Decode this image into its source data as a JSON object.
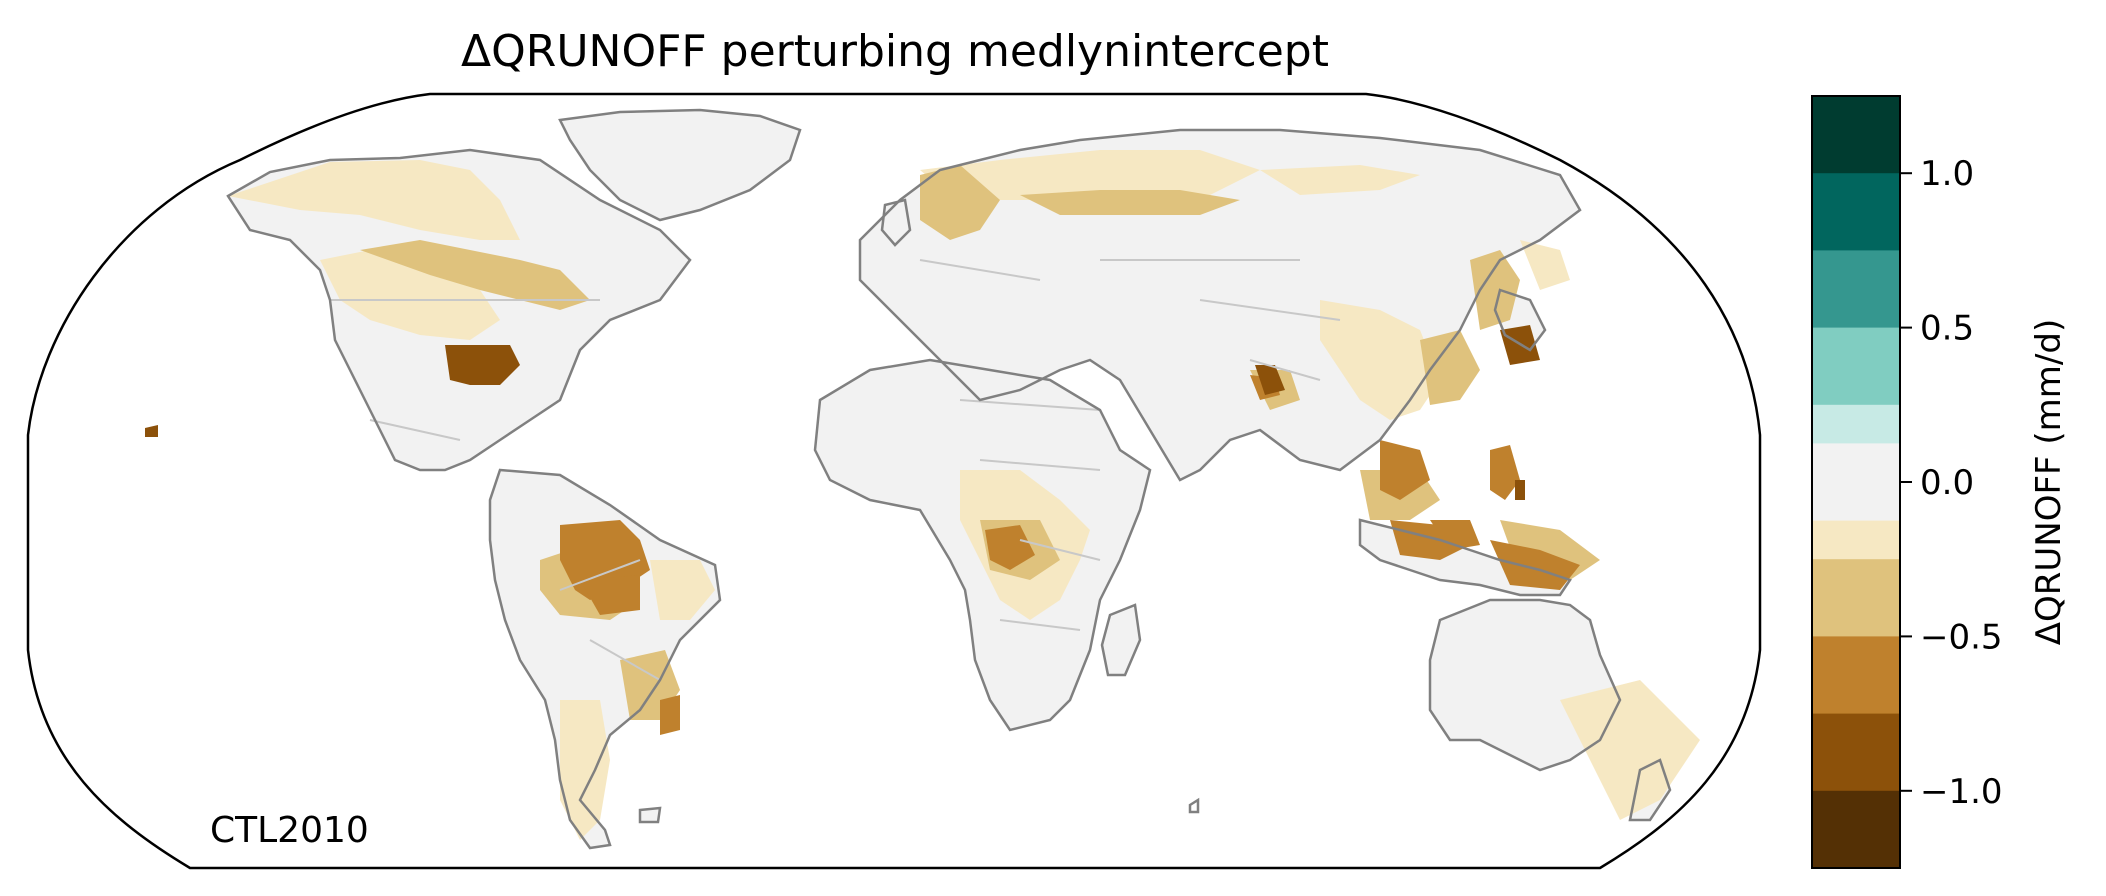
{
  "title": "ΔQRUNOFF perturbing medlynintercept",
  "run_label": "CTL2010",
  "colorbar": {
    "label": "ΔQRUNOFF (mm/d)",
    "ticks": [
      {
        "value": 1.0,
        "label": "1.0"
      },
      {
        "value": 0.5,
        "label": "0.5"
      },
      {
        "value": 0.0,
        "label": "0.0"
      },
      {
        "value": -0.5,
        "label": "−0.5"
      },
      {
        "value": -1.0,
        "label": "−1.0"
      }
    ],
    "range": [
      -1.25,
      1.25
    ],
    "bins": [
      {
        "from": 1.0,
        "to": 1.25,
        "color": "#003c30"
      },
      {
        "from": 0.75,
        "to": 1.0,
        "color": "#01665e"
      },
      {
        "from": 0.5,
        "to": 0.75,
        "color": "#35978f"
      },
      {
        "from": 0.25,
        "to": 0.5,
        "color": "#80cdc1"
      },
      {
        "from": 0.125,
        "to": 0.25,
        "color": "#c7eae5"
      },
      {
        "from": -0.125,
        "to": 0.125,
        "color": "#f2f2f2"
      },
      {
        "from": -0.25,
        "to": -0.125,
        "color": "#f6e8c3"
      },
      {
        "from": -0.5,
        "to": -0.25,
        "color": "#dfc27d"
      },
      {
        "from": -0.75,
        "to": -0.5,
        "color": "#bf812d"
      },
      {
        "from": -1.0,
        "to": -0.75,
        "color": "#8c510a"
      },
      {
        "from": -1.25,
        "to": -1.0,
        "color": "#543005"
      }
    ]
  },
  "map": {
    "projection": "Robinson",
    "land_color": "#f2f2f2",
    "coast_color": "#808080",
    "border_color": "#c8c8c8"
  }
}
